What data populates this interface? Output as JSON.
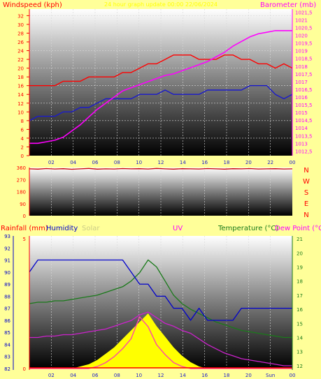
{
  "chart_data": [
    {
      "type": "line",
      "title": "24 hour graph update 00:00 22/06/2024",
      "ylabel_left": "Windspeed (kph)",
      "ylabel_right": "Barometer (mb)",
      "left_ticks": [
        0,
        2,
        4,
        6,
        8,
        10,
        12,
        14,
        16,
        18,
        20,
        22,
        24,
        26,
        28,
        30,
        32
      ],
      "right_ticks": [
        "1012,5",
        "1013",
        "1013,5",
        "1014",
        "1014,5",
        "1015",
        "1015,5",
        "1016",
        "1016,5",
        "1017",
        "1017,5",
        "1018",
        "1018,5",
        "1019",
        "1019,5",
        "1020",
        "1020,5",
        "1021",
        "1021,5"
      ],
      "ylim_left": [
        0,
        33.5
      ],
      "ylim_right": [
        1012.2,
        1021.7
      ],
      "x_ticks": [
        "02",
        "04",
        "06",
        "08",
        "10",
        "12",
        "14",
        "16",
        "18",
        "20",
        "22",
        "00"
      ],
      "x_hours": [
        0,
        2,
        4,
        6,
        8,
        10,
        12,
        14,
        16,
        18,
        20,
        22,
        24
      ],
      "gust_kph": [
        16,
        16,
        16,
        16,
        17,
        17,
        17,
        18,
        18,
        18,
        18,
        19,
        19,
        20,
        21,
        21,
        22,
        23,
        23,
        23,
        22,
        22,
        22,
        23,
        23,
        22,
        22,
        21,
        21,
        20,
        21,
        20
      ],
      "avg_kph": [
        8,
        9,
        9,
        9,
        10,
        10,
        11,
        11,
        12,
        13,
        13,
        13,
        13,
        14,
        14,
        14,
        15,
        14,
        14,
        14,
        14,
        15,
        15,
        15,
        15,
        15,
        16,
        16,
        16,
        14,
        13,
        14
      ],
      "barometer_mb": [
        1013.0,
        1013.0,
        1013.1,
        1013.2,
        1013.4,
        1013.8,
        1014.2,
        1014.7,
        1015.2,
        1015.6,
        1016.0,
        1016.4,
        1016.6,
        1016.8,
        1017.0,
        1017.2,
        1017.4,
        1017.5,
        1017.7,
        1017.9,
        1018.1,
        1018.3,
        1018.6,
        1018.9,
        1019.3,
        1019.6,
        1019.9,
        1020.1,
        1020.2,
        1020.3,
        1020.3,
        1020.3
      ]
    },
    {
      "type": "line",
      "direction_ticks": [
        0,
        90,
        180,
        270,
        360
      ],
      "compass_labels": [
        "N",
        "W",
        "S",
        "E",
        "N"
      ],
      "ylim": [
        0,
        360
      ],
      "x_hours": [
        0,
        2,
        4,
        6,
        8,
        10,
        12,
        14,
        16,
        18,
        20,
        22,
        24
      ],
      "direction_deg": [
        350,
        348,
        352,
        349,
        351,
        347,
        350,
        353,
        348,
        350,
        349,
        352,
        350,
        351,
        349,
        353,
        350,
        348,
        351,
        350,
        349,
        352,
        350,
        348,
        351,
        350,
        352,
        349,
        350,
        351,
        349,
        350
      ]
    },
    {
      "type": "line",
      "label_rainfall": "Rainfall (mm)",
      "label_humidity": "Humidity",
      "label_solar": "Solar",
      "label_uv": "UV",
      "label_temperature": "Temperature (°C)",
      "label_dewpoint": "Dew Point (°C)",
      "humidity_ticks": [
        82,
        83,
        84,
        85,
        86,
        87,
        88,
        89,
        90,
        91,
        92,
        93
      ],
      "temperature_ticks": [
        12,
        13,
        14,
        15,
        16,
        17,
        18,
        19,
        20,
        21
      ],
      "rain_ticks": [
        0,
        5
      ],
      "ylim_humidity": [
        82,
        93
      ],
      "ylim_temperature": [
        11.8,
        21.2
      ],
      "x_ticks": [
        "02",
        "04",
        "06",
        "08",
        "10",
        "12",
        "14",
        "16",
        "18",
        "20",
        "Sun",
        "00"
      ],
      "x_hours": [
        0,
        2,
        4,
        6,
        8,
        10,
        12,
        14,
        16,
        18,
        20,
        22,
        24
      ],
      "humidity_pct": [
        90,
        91,
        91,
        91,
        91,
        91,
        91,
        91,
        91,
        91,
        91,
        91,
        90,
        89,
        89,
        88,
        88,
        87,
        87,
        86,
        87,
        86,
        86,
        86,
        86,
        87,
        87,
        87,
        87,
        87,
        87,
        87
      ],
      "temperature_c": [
        16.4,
        16.5,
        16.5,
        16.6,
        16.6,
        16.7,
        16.8,
        16.9,
        17.0,
        17.2,
        17.4,
        17.6,
        18.0,
        18.6,
        19.5,
        19.0,
        18.0,
        17.0,
        16.4,
        16.0,
        15.7,
        15.4,
        15.1,
        14.9,
        14.7,
        14.5,
        14.4,
        14.3,
        14.2,
        14.1,
        14.0,
        14.0
      ],
      "dewpoint_c": [
        14.0,
        14.0,
        14.1,
        14.1,
        14.2,
        14.2,
        14.3,
        14.4,
        14.5,
        14.6,
        14.8,
        15.0,
        15.2,
        15.6,
        15.8,
        15.4,
        15.0,
        14.8,
        14.5,
        14.3,
        13.9,
        13.5,
        13.2,
        12.9,
        12.7,
        12.5,
        12.4,
        12.3,
        12.2,
        12.1,
        12.0,
        12.0
      ],
      "solar_pct": [
        0,
        0,
        0,
        0,
        0,
        0,
        1,
        2,
        4,
        7,
        10,
        14,
        18,
        22,
        26,
        20,
        15,
        10,
        6,
        3,
        1,
        0,
        0,
        0,
        0,
        0,
        0,
        0,
        0,
        0,
        0,
        0
      ],
      "uv_index": [
        0,
        0,
        0,
        0,
        0,
        0,
        0,
        0,
        0.1,
        0.3,
        0.6,
        1.0,
        1.5,
        2.6,
        2.1,
        1.2,
        0.7,
        0.3,
        0.1,
        0,
        0,
        0,
        0,
        0,
        0,
        0,
        0,
        0,
        0,
        0,
        0,
        0
      ],
      "rainfall_mm": [
        0,
        0,
        0,
        0,
        0,
        0,
        0,
        0,
        0,
        0,
        0,
        0,
        0,
        0,
        0,
        0,
        0,
        0,
        0,
        0,
        0,
        0,
        0,
        0,
        0,
        0,
        0,
        0,
        0,
        0,
        0,
        0
      ]
    }
  ],
  "colors": {
    "background": "#ffff99",
    "wind_gust": "#ff0000",
    "wind_avg": "#1a1acc",
    "barometer": "#ff00ff",
    "direction": "#cc0000",
    "humidity": "#0000cc",
    "temperature": "#1a7a1a",
    "dewpoint": "#cc22cc",
    "solar": "#ffff00",
    "uv": "#ff44aa"
  }
}
